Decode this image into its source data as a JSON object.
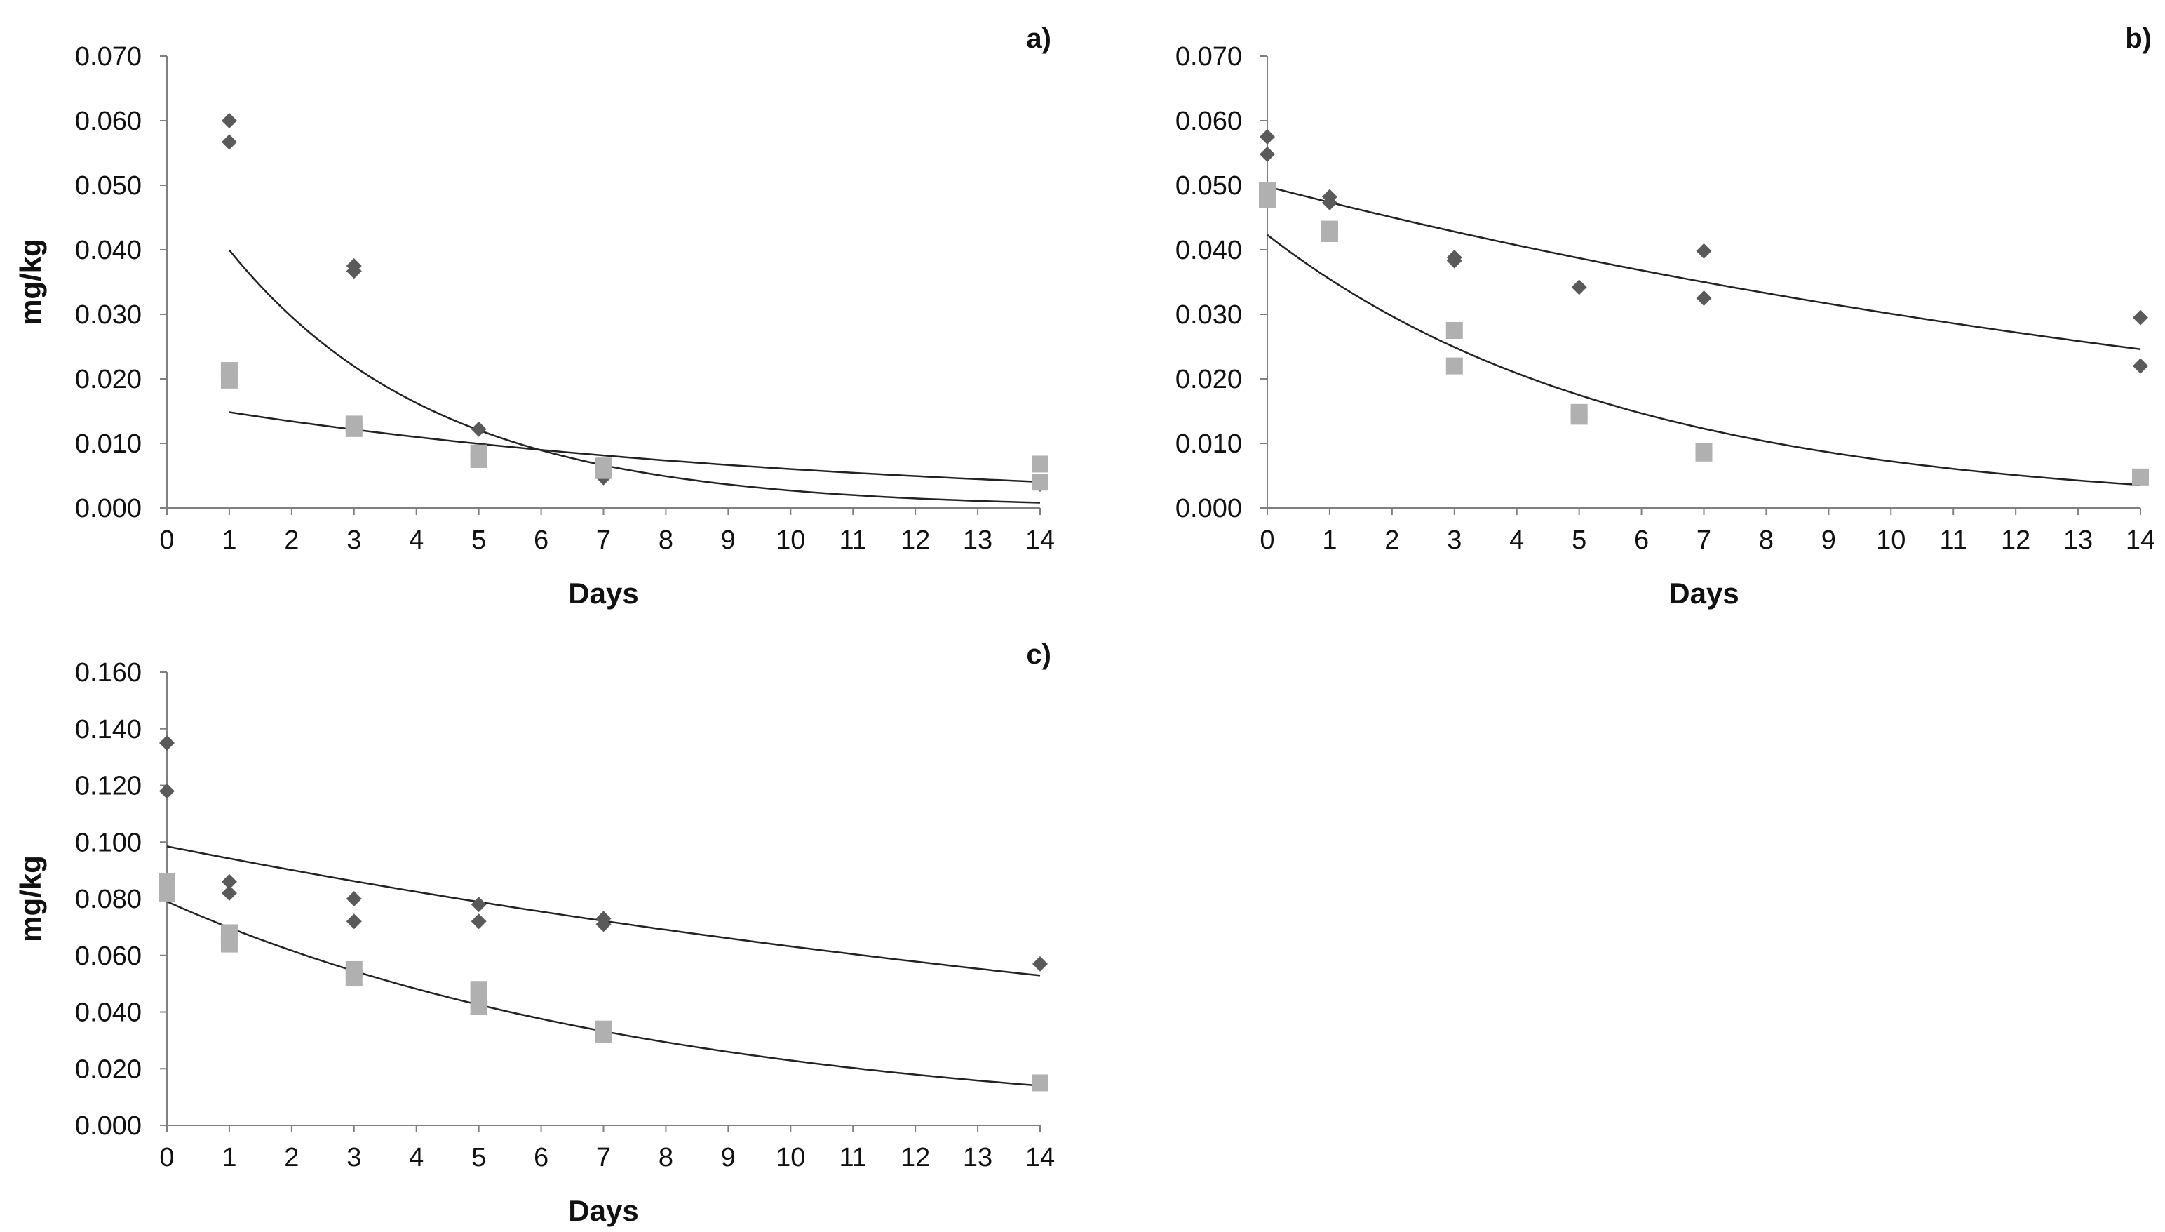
{
  "chart_data": [
    {
      "type": "scatter",
      "panel_label": "a)",
      "title": "",
      "xlabel": "Days",
      "ylabel": "mg/kg",
      "xlim": [
        0,
        14
      ],
      "ylim": [
        0,
        0.07
      ],
      "xticks": [
        "0",
        "1",
        "2",
        "3",
        "4",
        "5",
        "6",
        "7",
        "8",
        "9",
        "10",
        "11",
        "12",
        "13",
        "14"
      ],
      "yticks": [
        "0.000",
        "0.010",
        "0.020",
        "0.030",
        "0.040",
        "0.050",
        "0.060",
        "0.070"
      ],
      "grid": false,
      "series": [
        {
          "name": "diamond series",
          "marker": "diamond",
          "color": "#5a5a5a",
          "points": [
            [
              1,
              0.06
            ],
            [
              1,
              0.0567
            ],
            [
              3,
              0.0375
            ],
            [
              3,
              0.0367
            ],
            [
              5,
              0.0122
            ],
            [
              7,
              0.0047
            ],
            [
              14,
              0.0037
            ]
          ],
          "fit": {
            "a": 0.0539,
            "k": 0.2995,
            "x_from": 1,
            "x_to": 14
          }
        },
        {
          "name": "square series",
          "marker": "square",
          "color": "#b0b0b0",
          "points": [
            [
              1,
              0.0213
            ],
            [
              1,
              0.0198
            ],
            [
              3,
              0.013
            ],
            [
              3,
              0.0123
            ],
            [
              5,
              0.0085
            ],
            [
              5,
              0.0075
            ],
            [
              7,
              0.0065
            ],
            [
              7,
              0.0058
            ],
            [
              14,
              0.0068
            ],
            [
              14,
              0.004
            ]
          ],
          "fit": {
            "a": 0.0164,
            "k": 0.1001,
            "x_from": 1,
            "x_to": 14
          }
        }
      ]
    },
    {
      "type": "scatter",
      "panel_label": "b)",
      "title": "",
      "xlabel": "Days",
      "ylabel": "mg/kg",
      "xlim": [
        0,
        14
      ],
      "ylim": [
        0,
        0.07
      ],
      "xticks": [
        "0",
        "1",
        "2",
        "3",
        "4",
        "5",
        "6",
        "7",
        "8",
        "9",
        "10",
        "11",
        "12",
        "13",
        "14"
      ],
      "yticks": [
        "0.000",
        "0.010",
        "0.020",
        "0.030",
        "0.040",
        "0.050",
        "0.060",
        "0.070"
      ],
      "grid": false,
      "series": [
        {
          "name": "diamond series",
          "marker": "diamond",
          "color": "#5a5a5a",
          "points": [
            [
              0,
              0.0575
            ],
            [
              0,
              0.0548
            ],
            [
              1,
              0.0482
            ],
            [
              1,
              0.0473
            ],
            [
              3,
              0.0388
            ],
            [
              3,
              0.0383
            ],
            [
              5,
              0.0342
            ],
            [
              7,
              0.0398
            ],
            [
              7,
              0.0325
            ],
            [
              14,
              0.0295
            ],
            [
              14,
              0.022
            ]
          ],
          "fit": {
            "a": 0.0498,
            "k": 0.0504,
            "x_from": 0,
            "x_to": 14
          }
        },
        {
          "name": "square series",
          "marker": "square",
          "color": "#b0b0b0",
          "points": [
            [
              0,
              0.0492
            ],
            [
              0,
              0.0478
            ],
            [
              1,
              0.0432
            ],
            [
              1,
              0.0425
            ],
            [
              3,
              0.0275
            ],
            [
              3,
              0.022
            ],
            [
              5,
              0.0148
            ],
            [
              5,
              0.0142
            ],
            [
              7,
              0.0088
            ],
            [
              7,
              0.0085
            ],
            [
              14,
              0.0048
            ]
          ],
          "fit": {
            "a": 0.0423,
            "k": 0.1766,
            "x_from": 0,
            "x_to": 14
          }
        }
      ]
    },
    {
      "type": "scatter",
      "panel_label": "c)",
      "title": "",
      "xlabel": "Days",
      "ylabel": "mg/kg",
      "xlim": [
        0,
        14
      ],
      "ylim": [
        0,
        0.16
      ],
      "xticks": [
        "0",
        "1",
        "2",
        "3",
        "4",
        "5",
        "6",
        "7",
        "8",
        "9",
        "10",
        "11",
        "12",
        "13",
        "14"
      ],
      "yticks": [
        "0.000",
        "0.020",
        "0.040",
        "0.060",
        "0.080",
        "0.100",
        "0.120",
        "0.140",
        "0.160"
      ],
      "grid": false,
      "series": [
        {
          "name": "diamond series",
          "marker": "diamond",
          "color": "#5a5a5a",
          "points": [
            [
              0,
              0.135
            ],
            [
              0,
              0.118
            ],
            [
              1,
              0.086
            ],
            [
              1,
              0.082
            ],
            [
              3,
              0.08
            ],
            [
              3,
              0.072
            ],
            [
              5,
              0.078
            ],
            [
              5,
              0.072
            ],
            [
              7,
              0.073
            ],
            [
              7,
              0.071
            ],
            [
              14,
              0.057
            ]
          ],
          "fit": {
            "a": 0.0985,
            "k": 0.0444,
            "x_from": 0,
            "x_to": 14
          }
        },
        {
          "name": "square series",
          "marker": "square",
          "color": "#b0b0b0",
          "points": [
            [
              0,
              0.086
            ],
            [
              0,
              0.082
            ],
            [
              1,
              0.068
            ],
            [
              1,
              0.064
            ],
            [
              3,
              0.055
            ],
            [
              3,
              0.052
            ],
            [
              5,
              0.048
            ],
            [
              5,
              0.042
            ],
            [
              7,
              0.034
            ],
            [
              7,
              0.032
            ],
            [
              14,
              0.015
            ]
          ],
          "fit": {
            "a": 0.079,
            "k": 0.1237,
            "x_from": 0,
            "x_to": 14
          }
        }
      ]
    }
  ]
}
